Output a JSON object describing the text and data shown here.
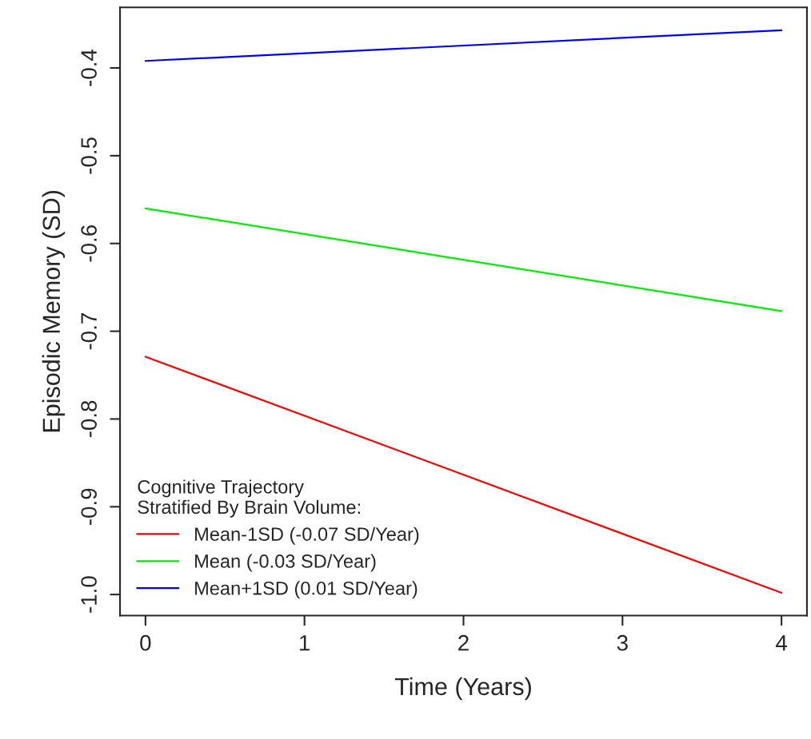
{
  "chart_data": {
    "type": "line",
    "xlabel": "Time (Years)",
    "ylabel": "Episodic Memory (SD)",
    "legend_title": "Cognitive Trajectory\nStratified By Brain Volume:",
    "x": [
      0,
      4
    ],
    "series": [
      {
        "name": "Mean-1SD (-0.07 SD/Year)",
        "color": "#ff0000",
        "values": [
          -0.729,
          -0.998
        ]
      },
      {
        "name": "Mean (-0.03 SD/Year)",
        "color": "#00ee00",
        "values": [
          -0.56,
          -0.677
        ]
      },
      {
        "name": "Mean+1SD (0.01 SD/Year)",
        "color": "#0000ff",
        "values": [
          -0.392,
          -0.357
        ]
      }
    ],
    "xlim": [
      -0.16,
      4.16
    ],
    "ylim": [
      -1.024,
      -0.331
    ],
    "xticks": [
      0,
      1,
      2,
      3,
      4
    ],
    "yticks": [
      {
        "value": -1.0,
        "label": "-1.0"
      },
      {
        "value": -0.9,
        "label": "-0.9"
      },
      {
        "value": -0.8,
        "label": "-0.8"
      },
      {
        "value": -0.7,
        "label": "-0.7"
      },
      {
        "value": -0.6,
        "label": "-0.6"
      },
      {
        "value": -0.5,
        "label": "-0.5"
      },
      {
        "value": -0.4,
        "label": "-0.4"
      }
    ],
    "grid": false,
    "legend": "bottom left",
    "marker": "none",
    "line_style": "solid"
  }
}
